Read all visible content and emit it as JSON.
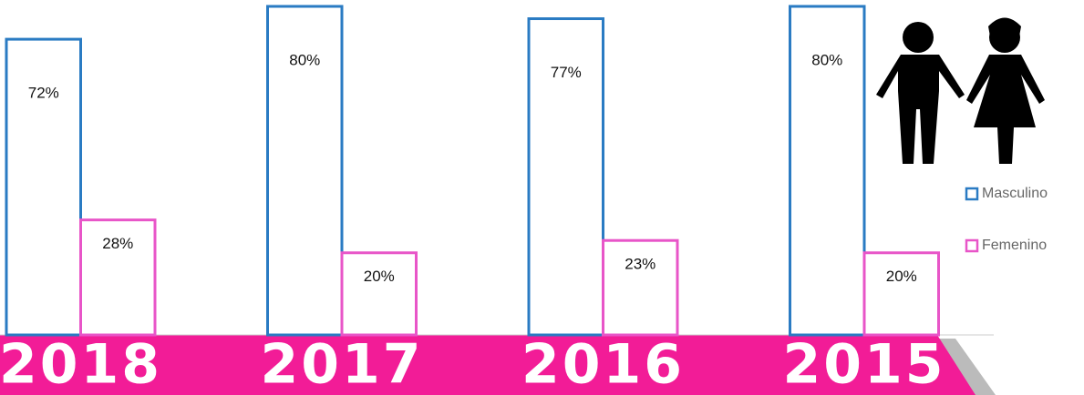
{
  "chart_data": {
    "type": "bar",
    "categories": [
      "2018",
      "2017",
      "2016",
      "2015"
    ],
    "series": [
      {
        "name": "Masculino",
        "color": "#2a7bc3",
        "values": [
          72,
          80,
          77,
          80
        ],
        "value_labels": [
          "72%",
          "80%",
          "77%",
          "80%"
        ]
      },
      {
        "name": "Femenino",
        "color": "#e855c8",
        "values": [
          28,
          20,
          23,
          20
        ],
        "value_labels": [
          "28%",
          "20%",
          "23%",
          "20%"
        ]
      }
    ],
    "legend": "right"
  }
}
